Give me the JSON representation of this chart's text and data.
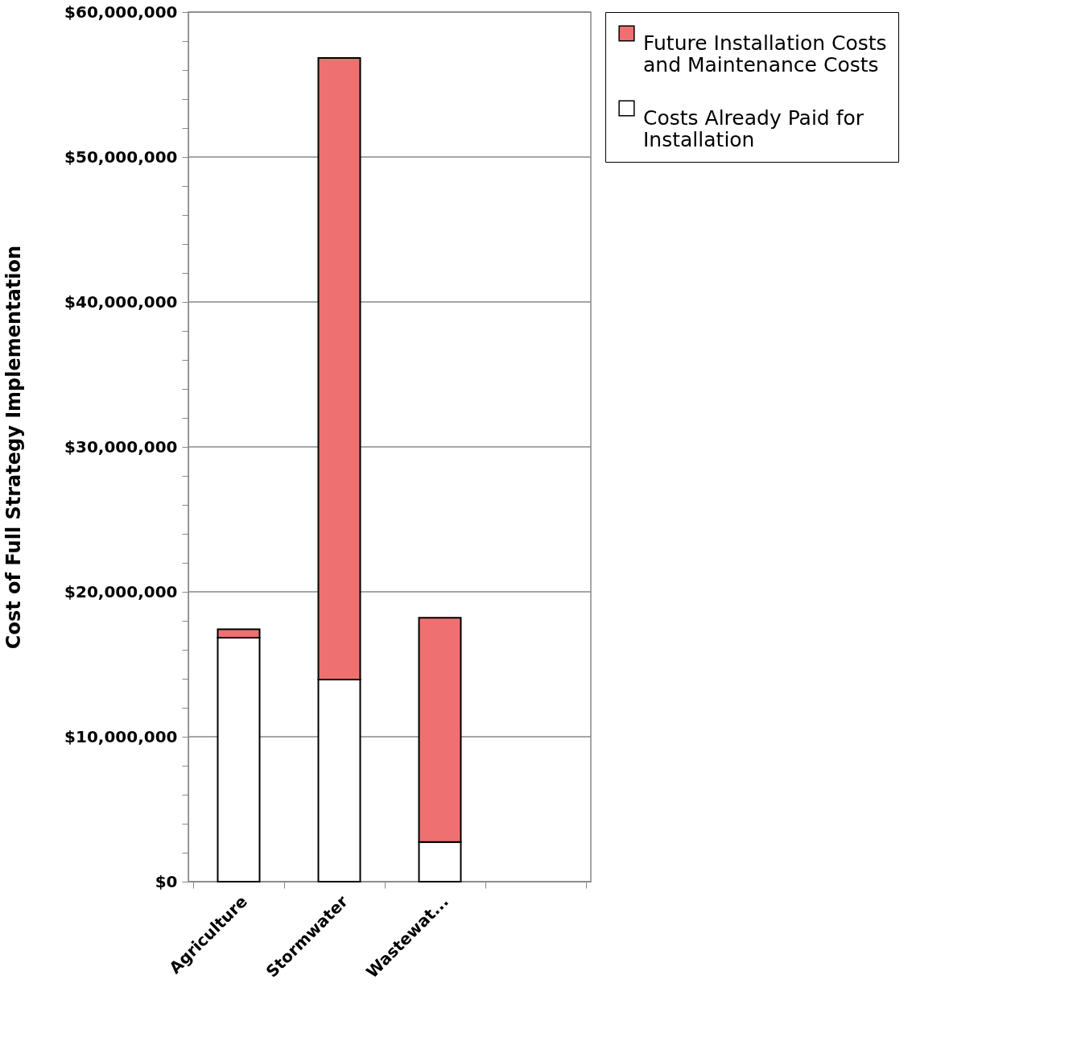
{
  "chart_data": {
    "type": "bar",
    "stacked": true,
    "ylabel": "Cost of Full Strategy Implementation",
    "categories": [
      "Agriculture",
      "Stormwater",
      "Wastewat...",
      null
    ],
    "series": [
      {
        "name": "Costs Already Paid for Installation",
        "color": "#ffffff",
        "values": [
          16840000,
          13950000,
          2740000,
          null
        ]
      },
      {
        "name": "Future Installation Costs and Maintenance Costs",
        "color": "#ee7070",
        "values": [
          580000,
          42890000,
          15470000,
          null
        ]
      }
    ],
    "ylim": [
      0,
      60000000
    ],
    "yticks": [
      {
        "value": 0,
        "label": "$0"
      },
      {
        "value": 2000000,
        "label": null
      },
      {
        "value": 4000000,
        "label": null
      },
      {
        "value": 6000000,
        "label": null
      },
      {
        "value": 8000000,
        "label": null
      },
      {
        "value": 10000000,
        "label": "$10,000,000"
      },
      {
        "value": 12000000,
        "label": null
      },
      {
        "value": 14000000,
        "label": null
      },
      {
        "value": 16000000,
        "label": null
      },
      {
        "value": 18000000,
        "label": null
      },
      {
        "value": 20000000,
        "label": "$20,000,000"
      },
      {
        "value": 22000000,
        "label": null
      },
      {
        "value": 24000000,
        "label": null
      },
      {
        "value": 26000000,
        "label": null
      },
      {
        "value": 28000000,
        "label": null
      },
      {
        "value": 30000000,
        "label": "$30,000,000"
      },
      {
        "value": 32000000,
        "label": null
      },
      {
        "value": 34000000,
        "label": null
      },
      {
        "value": 36000000,
        "label": null
      },
      {
        "value": 38000000,
        "label": null
      },
      {
        "value": 40000000,
        "label": "$40,000,000"
      },
      {
        "value": 42000000,
        "label": null
      },
      {
        "value": 44000000,
        "label": null
      },
      {
        "value": 46000000,
        "label": null
      },
      {
        "value": 48000000,
        "label": null
      },
      {
        "value": 50000000,
        "label": "$50,000,000"
      },
      {
        "value": 52000000,
        "label": null
      },
      {
        "value": 54000000,
        "label": null
      },
      {
        "value": 56000000,
        "label": null
      },
      {
        "value": 58000000,
        "label": null
      },
      {
        "value": 60000000,
        "label": "$60,000,000"
      }
    ],
    "grid": "y",
    "legend": "right"
  }
}
